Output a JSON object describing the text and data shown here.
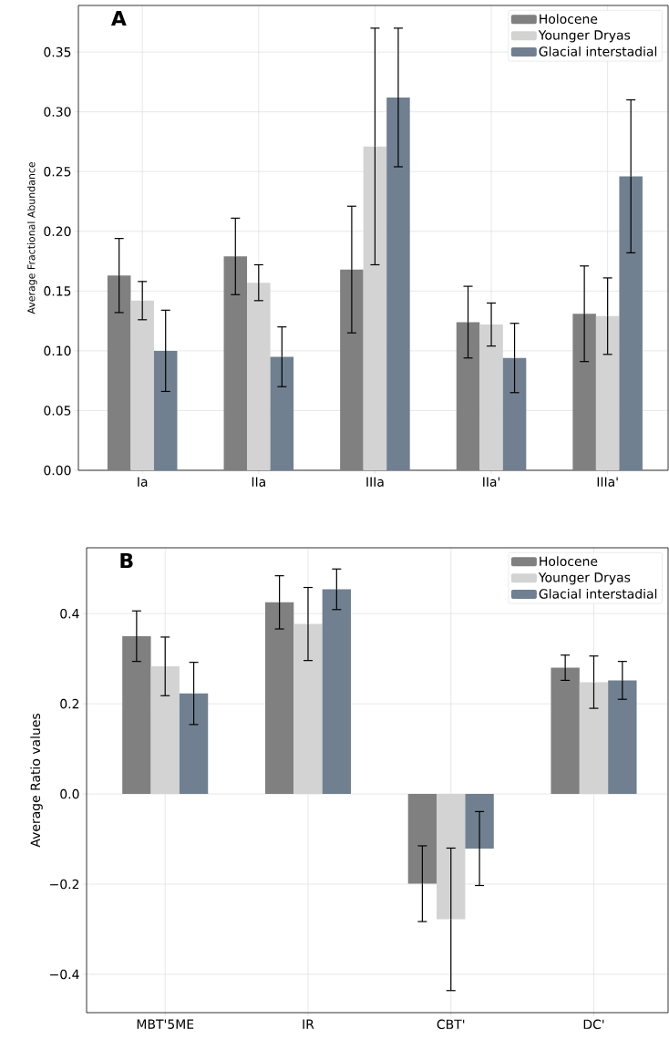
{
  "chart_data": [
    {
      "type": "bar",
      "title": "A",
      "ylabel": "Average Fractional Abundance",
      "categories": [
        "Ia",
        "IIa",
        "IIIa",
        "IIa'",
        "IIIa'"
      ],
      "series": [
        {
          "name": "Holocene",
          "color": "#808080",
          "values": [
            0.163,
            0.179,
            0.168,
            0.124,
            0.131
          ],
          "errors": [
            0.031,
            0.032,
            0.053,
            0.03,
            0.04
          ]
        },
        {
          "name": "Younger Dryas",
          "color": "#d3d3d3",
          "values": [
            0.142,
            0.157,
            0.271,
            0.122,
            0.129
          ],
          "errors": [
            0.016,
            0.015,
            0.099,
            0.018,
            0.032
          ]
        },
        {
          "name": "Glacial interstadial",
          "color": "#708090",
          "values": [
            0.1,
            0.095,
            0.312,
            0.094,
            0.246
          ],
          "errors": [
            0.034,
            0.025,
            0.058,
            0.029,
            0.064
          ]
        }
      ],
      "ylim": [
        0,
        0.389
      ],
      "yticks": [
        {
          "value": 0,
          "label": "0.00"
        },
        {
          "value": 0.05,
          "label": "0.05"
        },
        {
          "value": 0.1,
          "label": "0.10"
        },
        {
          "value": 0.15,
          "label": "0.15"
        },
        {
          "value": 0.2,
          "label": "0.20"
        },
        {
          "value": 0.25,
          "label": "0.25"
        },
        {
          "value": 0.3,
          "label": "0.30"
        },
        {
          "value": 0.35,
          "label": "0.35"
        }
      ],
      "grid": true,
      "legend": "top right"
    },
    {
      "type": "bar",
      "title": "B",
      "ylabel": "Average Ratio values",
      "categories": [
        "MBT'5ME",
        "IR",
        "CBT'",
        "DC'"
      ],
      "series": [
        {
          "name": "Holocene",
          "color": "#808080",
          "values": [
            0.35,
            0.425,
            -0.199,
            0.28
          ],
          "errors": [
            0.056,
            0.059,
            0.084,
            0.028
          ]
        },
        {
          "name": "Younger Dryas",
          "color": "#d3d3d3",
          "values": [
            0.283,
            0.377,
            -0.278,
            0.248
          ],
          "errors": [
            0.065,
            0.081,
            0.158,
            0.058
          ]
        },
        {
          "name": "Glacial interstadial",
          "color": "#708090",
          "values": [
            0.223,
            0.454,
            -0.121,
            0.252
          ],
          "errors": [
            0.069,
            0.045,
            0.082,
            0.042
          ]
        }
      ],
      "ylim": [
        -0.485,
        0.546
      ],
      "yticks": [
        {
          "value": -0.4,
          "label": "−0.4"
        },
        {
          "value": -0.2,
          "label": "−0.2"
        },
        {
          "value": 0,
          "label": "0.0"
        },
        {
          "value": 0.2,
          "label": "0.2"
        },
        {
          "value": 0.4,
          "label": "0.4"
        }
      ],
      "grid": true,
      "legend": "top right"
    }
  ]
}
